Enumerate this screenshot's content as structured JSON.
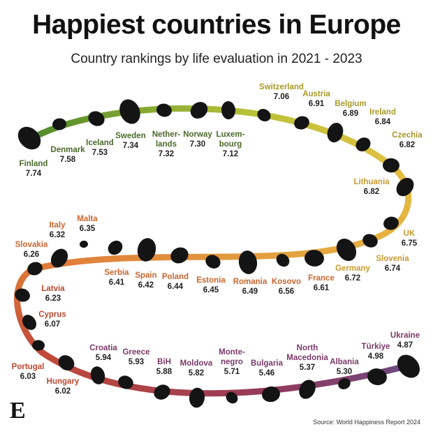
{
  "chart_data": {
    "type": "ranking",
    "title": "Happiest countries in Europe",
    "subtitle": "Country rankings by life evaluation in 2021 - 2023",
    "source": "Source: World Happiness Report 2024",
    "logo": "E",
    "categories": [
      "Finland",
      "Denmark",
      "Iceland",
      "Sweden",
      "Nether-\nlands",
      "Norway",
      "Luxem-\nbourg",
      "Switzerland",
      "Austria",
      "Belgium",
      "Ireland",
      "Czechia",
      "Lithuania",
      "UK",
      "Slovenia",
      "Germany",
      "France",
      "Kosovo",
      "Romania",
      "Estonia",
      "Poland",
      "Spain",
      "Serbia",
      "Malta",
      "Italy",
      "Slovakia",
      "Latvia",
      "Cyprus",
      "Portugal",
      "Hungary",
      "Croatia",
      "Greece",
      "BiH",
      "Moldova",
      "Monte-\nnegro",
      "Bulgaria",
      "North\nMacedonia",
      "Albania",
      "Türkiye",
      "Ukraine"
    ],
    "values": [
      7.74,
      7.58,
      7.53,
      7.34,
      7.32,
      7.3,
      7.12,
      7.06,
      6.91,
      6.89,
      6.84,
      6.82,
      6.82,
      6.75,
      6.74,
      6.72,
      6.61,
      6.56,
      6.49,
      6.45,
      6.44,
      6.42,
      6.41,
      6.35,
      6.32,
      6.26,
      6.23,
      6.07,
      6.03,
      6.02,
      5.94,
      5.93,
      5.88,
      5.82,
      5.71,
      5.46,
      5.37,
      5.3,
      4.98,
      4.87
    ],
    "value_labels": [
      "7.74",
      "7.58",
      "7.53",
      "7.34",
      "7.32",
      "7.30",
      "7.12",
      "7.06",
      "6.91",
      "6.89",
      "6.84",
      "6.82",
      "6.82",
      "6.75",
      "6.74",
      "6.72",
      "6.61",
      "6.56",
      "6.49",
      "6.45",
      "6.44",
      "6.42",
      "6.41",
      "6.35",
      "6.32",
      "6.26",
      "6.23",
      "6.07",
      "6.03",
      "6.02",
      "5.94",
      "5.93",
      "5.88",
      "5.82",
      "5.71",
      "5.46",
      "5.37",
      "5.30",
      "4.98",
      "4.87"
    ],
    "shape_color": "#141414"
  }
}
